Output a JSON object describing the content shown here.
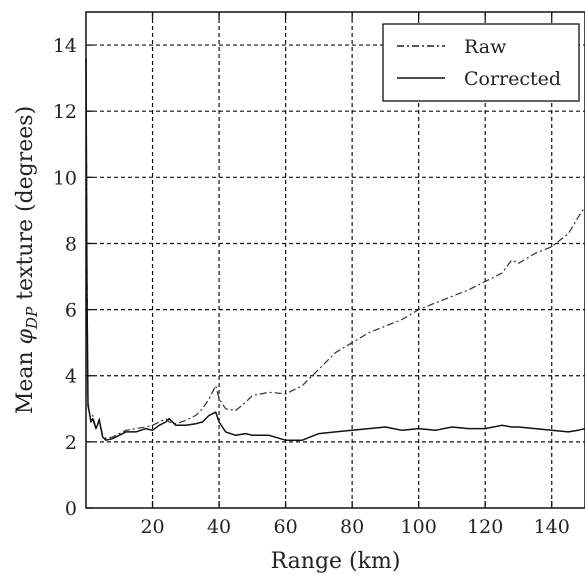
{
  "chart_data": {
    "type": "line",
    "title": "",
    "xlabel": "Range (km)",
    "ylabel": "Mean φ_DP texture (degrees)",
    "ylabel_parts": {
      "prefix": "Mean ",
      "symbol": "φ",
      "subscript": "DP",
      "suffix": " texture (degrees)"
    },
    "xlim": [
      0,
      150
    ],
    "ylim": [
      0,
      15
    ],
    "xticks": [
      20,
      40,
      60,
      80,
      100,
      120,
      140
    ],
    "yticks": [
      0,
      2,
      4,
      6,
      8,
      10,
      12,
      14
    ],
    "grid": true,
    "legend_position": "top-right",
    "series": [
      {
        "name": "Raw",
        "style": "dashdot",
        "x": [
          0,
          0.3,
          0.6,
          1,
          1.5,
          2,
          3,
          4,
          5,
          6,
          8,
          10,
          12,
          15,
          18,
          20,
          22,
          24,
          25,
          27,
          30,
          33,
          35,
          37,
          38,
          39,
          40,
          42,
          45,
          48,
          50,
          55,
          60,
          65,
          70,
          75,
          80,
          85,
          90,
          95,
          100,
          105,
          110,
          115,
          120,
          125,
          128,
          130,
          135,
          140,
          145,
          148,
          150
        ],
        "y": [
          13.6,
          7.0,
          3.2,
          2.9,
          2.6,
          2.8,
          2.4,
          2.7,
          2.2,
          2.1,
          2.15,
          2.25,
          2.35,
          2.4,
          2.45,
          2.5,
          2.6,
          2.7,
          2.6,
          2.55,
          2.65,
          2.8,
          3.0,
          3.3,
          3.5,
          3.7,
          3.3,
          3.0,
          2.95,
          3.2,
          3.4,
          3.5,
          3.45,
          3.7,
          4.2,
          4.7,
          5.0,
          5.3,
          5.5,
          5.7,
          6.0,
          6.2,
          6.4,
          6.6,
          6.85,
          7.1,
          7.5,
          7.4,
          7.7,
          7.9,
          8.3,
          8.8,
          9.1
        ]
      },
      {
        "name": "Corrected",
        "style": "solid",
        "x": [
          0,
          0.3,
          0.6,
          1,
          1.5,
          2,
          3,
          4,
          5,
          6,
          8,
          10,
          12,
          15,
          18,
          20,
          22,
          24,
          25,
          27,
          30,
          33,
          35,
          37,
          38,
          39,
          40,
          42,
          45,
          48,
          50,
          55,
          60,
          65,
          70,
          75,
          80,
          85,
          90,
          95,
          100,
          105,
          110,
          115,
          120,
          125,
          128,
          130,
          135,
          140,
          145,
          148,
          150
        ],
        "y": [
          13.6,
          6.5,
          3.1,
          2.9,
          2.6,
          2.7,
          2.4,
          2.65,
          2.15,
          2.05,
          2.1,
          2.2,
          2.3,
          2.3,
          2.4,
          2.35,
          2.5,
          2.6,
          2.7,
          2.5,
          2.5,
          2.55,
          2.6,
          2.8,
          2.85,
          2.9,
          2.6,
          2.3,
          2.2,
          2.25,
          2.2,
          2.2,
          2.05,
          2.05,
          2.25,
          2.3,
          2.35,
          2.4,
          2.45,
          2.35,
          2.4,
          2.35,
          2.45,
          2.4,
          2.4,
          2.5,
          2.45,
          2.45,
          2.4,
          2.35,
          2.3,
          2.35,
          2.4
        ]
      }
    ]
  }
}
